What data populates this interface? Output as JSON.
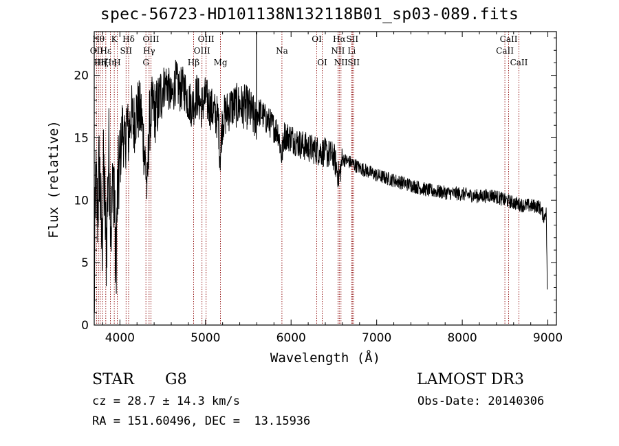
{
  "chart_data": {
    "type": "line",
    "title": "spec-56723-HD101138N132118B01_sp03-089.fits",
    "xlabel": "Wavelength (Å)",
    "ylabel": "Flux (relative)",
    "xlim": [
      3700,
      9100
    ],
    "ylim": [
      0,
      23.5
    ],
    "xticks": [
      4000,
      5000,
      6000,
      7000,
      8000,
      9000
    ],
    "yticks": [
      0,
      5,
      10,
      15,
      20
    ],
    "grid": false,
    "line_color": "#000000",
    "marker_color": "#8b0000",
    "series": [
      {
        "name": "flux",
        "anchors": [
          [
            3700,
            0.4
          ],
          [
            3715,
            11.5
          ],
          [
            3740,
            9
          ],
          [
            3760,
            13
          ],
          [
            3790,
            6
          ],
          [
            3810,
            12.5
          ],
          [
            3840,
            6
          ],
          [
            3870,
            14
          ],
          [
            3900,
            8
          ],
          [
            3930,
            13
          ],
          [
            3950,
            4
          ],
          [
            3970,
            10
          ],
          [
            4000,
            13
          ],
          [
            4030,
            16
          ],
          [
            4060,
            14
          ],
          [
            4080,
            16.5
          ],
          [
            4100,
            15
          ],
          [
            4130,
            17
          ],
          [
            4160,
            16
          ],
          [
            4200,
            17.3
          ],
          [
            4250,
            16.8
          ],
          [
            4300,
            12.8
          ],
          [
            4320,
            10.5
          ],
          [
            4340,
            16
          ],
          [
            4380,
            17.5
          ],
          [
            4420,
            17
          ],
          [
            4450,
            17.7
          ],
          [
            4500,
            19
          ],
          [
            4550,
            19.5
          ],
          [
            4600,
            18
          ],
          [
            4650,
            19.5
          ],
          [
            4700,
            18.8
          ],
          [
            4750,
            19
          ],
          [
            4800,
            18
          ],
          [
            4850,
            17.5
          ],
          [
            4900,
            18.5
          ],
          [
            4950,
            17.5
          ],
          [
            5000,
            18.2
          ],
          [
            5050,
            17.5
          ],
          [
            5100,
            17
          ],
          [
            5150,
            16.5
          ],
          [
            5170,
            13.5
          ],
          [
            5200,
            16.5
          ],
          [
            5300,
            17.5
          ],
          [
            5400,
            17.6
          ],
          [
            5500,
            17.4
          ],
          [
            5550,
            16.8
          ],
          [
            5590,
            16.2
          ],
          [
            5600,
            17
          ],
          [
            5650,
            17
          ],
          [
            5700,
            16.5
          ],
          [
            5750,
            16.2
          ],
          [
            5800,
            15.8
          ],
          [
            5850,
            15.5
          ],
          [
            5890,
            13.5
          ],
          [
            5920,
            15.2
          ],
          [
            6000,
            15
          ],
          [
            6100,
            14.5
          ],
          [
            6200,
            14.2
          ],
          [
            6300,
            14
          ],
          [
            6400,
            13.8
          ],
          [
            6500,
            13.5
          ],
          [
            6560,
            11.8
          ],
          [
            6600,
            13.3
          ],
          [
            6700,
            13
          ],
          [
            6800,
            12.6
          ],
          [
            7000,
            12
          ],
          [
            7200,
            11.6
          ],
          [
            7400,
            11.2
          ],
          [
            7600,
            10.8
          ],
          [
            7800,
            10.6
          ],
          [
            8000,
            10.5
          ],
          [
            8200,
            10.3
          ],
          [
            8350,
            10.4
          ],
          [
            8500,
            10
          ],
          [
            8700,
            9.6
          ],
          [
            8900,
            9.5
          ],
          [
            8960,
            8.6
          ],
          [
            8980,
            9.4
          ],
          [
            8995,
            2.6
          ]
        ]
      }
    ],
    "spike": {
      "x": 5595,
      "y_top": 23.5
    },
    "lines": [
      {
        "wave": 3727,
        "label": "OII",
        "row": 2
      },
      {
        "wave": 3750,
        "label": "Hθ",
        "row": 1
      },
      {
        "wave": 3770,
        "label": "Hη",
        "row": 3
      },
      {
        "wave": 3798,
        "label": "Hζ",
        "row": 3
      },
      {
        "wave": 3835,
        "label": "Hε",
        "row": 2
      },
      {
        "wave": 3889,
        "label": "Hη",
        "row": 3
      },
      {
        "wave": 3934,
        "label": "K",
        "row": 1
      },
      {
        "wave": 3969,
        "label": "H",
        "row": 3
      },
      {
        "wave": 4072,
        "label": "SII",
        "row": 2
      },
      {
        "wave": 4102,
        "label": "Hδ",
        "row": 1
      },
      {
        "wave": 4304,
        "label": "G",
        "row": 3
      },
      {
        "wave": 4341,
        "label": "Hγ",
        "row": 2
      },
      {
        "wave": 4363,
        "label": "OIII",
        "row": 1
      },
      {
        "wave": 4861,
        "label": "Hβ",
        "row": 3
      },
      {
        "wave": 4959,
        "label": "OIII",
        "row": 2
      },
      {
        "wave": 5007,
        "label": "OIII",
        "row": 1
      },
      {
        "wave": 5175,
        "label": "Mg",
        "row": 3
      },
      {
        "wave": 5893,
        "label": "Na",
        "row": 2
      },
      {
        "wave": 6300,
        "label": "OI",
        "row": 1
      },
      {
        "wave": 6364,
        "label": "OI",
        "row": 3
      },
      {
        "wave": 6548,
        "label": "NII",
        "row": 2
      },
      {
        "wave": 6563,
        "label": "Hα",
        "row": 1
      },
      {
        "wave": 6583,
        "label": "NII",
        "row": 3
      },
      {
        "wave": 6708,
        "label": "Li",
        "row": 2
      },
      {
        "wave": 6716,
        "label": "SII",
        "row": 1
      },
      {
        "wave": 6731,
        "label": "SII",
        "row": 3
      },
      {
        "wave": 8498,
        "label": "CaII",
        "row": 2
      },
      {
        "wave": 8542,
        "label": "CaII",
        "row": 1
      },
      {
        "wave": 8662,
        "label": "CaII",
        "row": 3
      }
    ]
  },
  "info": {
    "class": "STAR",
    "subclass": "G8",
    "survey": "LAMOST DR3",
    "cz": "cz = 28.7 ± 14.3 km/s",
    "obs_date": "Obs-Date: 20140306",
    "coords": "RA = 151.60496, DEC =  13.15936"
  }
}
